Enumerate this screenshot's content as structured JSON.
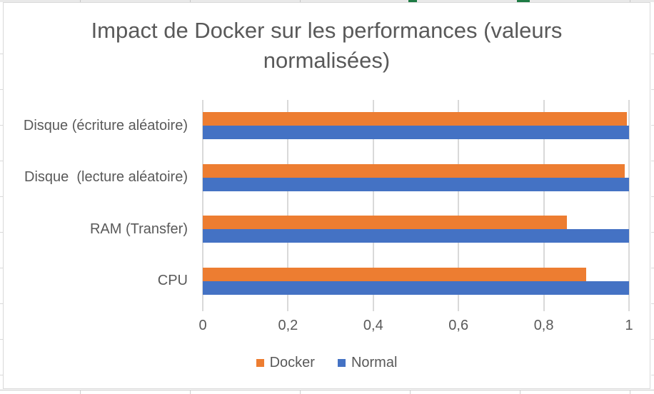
{
  "title": "Impact de Docker sur les performances (valeurs normalisées)",
  "colors": {
    "docker_orange": "#ED7D31",
    "normal_blue": "#4472C4",
    "text_gray": "#595959",
    "gridline_gray": "#D9D9D9"
  },
  "chart_data": {
    "type": "bar",
    "orientation": "horizontal",
    "title": "Impact de Docker sur les performances (valeurs normalisées)",
    "categories": [
      "Disque (écriture aléatoire)",
      "Disque  (lecture aléatoire)",
      "RAM (Transfer)",
      "CPU"
    ],
    "series": [
      {
        "name": "Docker",
        "color": "#ED7D31",
        "values": [
          0.995,
          0.99,
          0.855,
          0.9
        ]
      },
      {
        "name": "Normal",
        "color": "#4472C4",
        "values": [
          1,
          1,
          1,
          1
        ]
      }
    ],
    "x_ticks": [
      {
        "label": "0",
        "value": 0
      },
      {
        "label": "0,2",
        "value": 0.2
      },
      {
        "label": "0,4",
        "value": 0.4
      },
      {
        "label": "0,6",
        "value": 0.6
      },
      {
        "label": "0,8",
        "value": 0.8
      },
      {
        "label": "1",
        "value": 1
      }
    ],
    "xlim": [
      0,
      1
    ],
    "grid": true,
    "legend_position": "bottom",
    "bar_order_in_group_top_to_bottom": [
      "Docker",
      "Normal"
    ]
  }
}
